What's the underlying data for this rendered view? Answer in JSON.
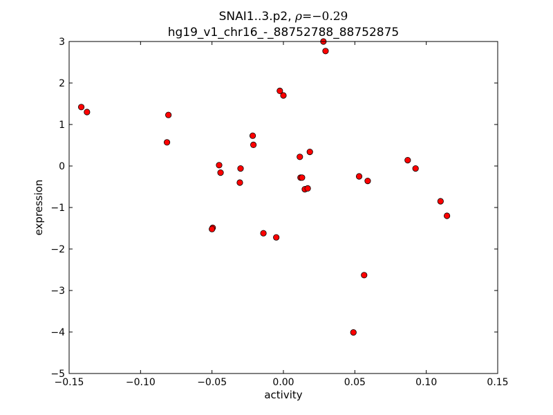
{
  "chart_data": {
    "type": "scatter",
    "title_line1_prefix": "SNAI1..3.p2, ",
    "title_line1_rho": "ρ",
    "title_line1_value": "=−0.29",
    "title_line2": "hg19_v1_chr16_-_88752788_88752875",
    "xlabel": "activity",
    "ylabel": "expression",
    "xlim": [
      -0.15,
      0.15
    ],
    "ylim": [
      -5,
      3
    ],
    "x_ticks": [
      -0.15,
      -0.1,
      -0.05,
      0.0,
      0.05,
      0.1,
      0.15
    ],
    "x_tick_labels": [
      "−0.15",
      "−0.10",
      "−0.05",
      "0.00",
      "0.05",
      "0.10",
      "0.15"
    ],
    "y_ticks": [
      -5,
      -4,
      -3,
      -2,
      -1,
      0,
      1,
      2,
      3
    ],
    "y_tick_labels": [
      "−5",
      "−4",
      "−3",
      "−2",
      "−1",
      "0",
      "1",
      "2",
      "3"
    ],
    "marker_color": "#ff0000",
    "marker_edge": "#000000",
    "points": [
      {
        "x": -0.1415,
        "y": 1.42
      },
      {
        "x": -0.1375,
        "y": 1.3
      },
      {
        "x": -0.0805,
        "y": 1.23
      },
      {
        "x": -0.0815,
        "y": 0.57
      },
      {
        "x": -0.045,
        "y": 0.02
      },
      {
        "x": -0.044,
        "y": -0.16
      },
      {
        "x": -0.0495,
        "y": -1.49
      },
      {
        "x": -0.05,
        "y": -1.52
      },
      {
        "x": -0.03,
        "y": -0.06
      },
      {
        "x": -0.0305,
        "y": -0.4
      },
      {
        "x": -0.0215,
        "y": 0.73
      },
      {
        "x": -0.021,
        "y": 0.51
      },
      {
        "x": -0.014,
        "y": -1.62
      },
      {
        "x": -0.005,
        "y": -1.72
      },
      {
        "x": -0.0025,
        "y": 1.81
      },
      {
        "x": 0.0,
        "y": 1.7
      },
      {
        "x": 0.0115,
        "y": 0.22
      },
      {
        "x": 0.012,
        "y": -0.28
      },
      {
        "x": 0.013,
        "y": -0.28
      },
      {
        "x": 0.015,
        "y": -0.56
      },
      {
        "x": 0.017,
        "y": -0.54
      },
      {
        "x": 0.0185,
        "y": 0.34
      },
      {
        "x": 0.028,
        "y": 3.0
      },
      {
        "x": 0.0295,
        "y": 2.77
      },
      {
        "x": 0.049,
        "y": -4.01
      },
      {
        "x": 0.053,
        "y": -0.25
      },
      {
        "x": 0.0565,
        "y": -2.63
      },
      {
        "x": 0.059,
        "y": -0.36
      },
      {
        "x": 0.087,
        "y": 0.14
      },
      {
        "x": 0.0925,
        "y": -0.06
      },
      {
        "x": 0.11,
        "y": -0.85
      },
      {
        "x": 0.1145,
        "y": -1.2
      }
    ]
  }
}
